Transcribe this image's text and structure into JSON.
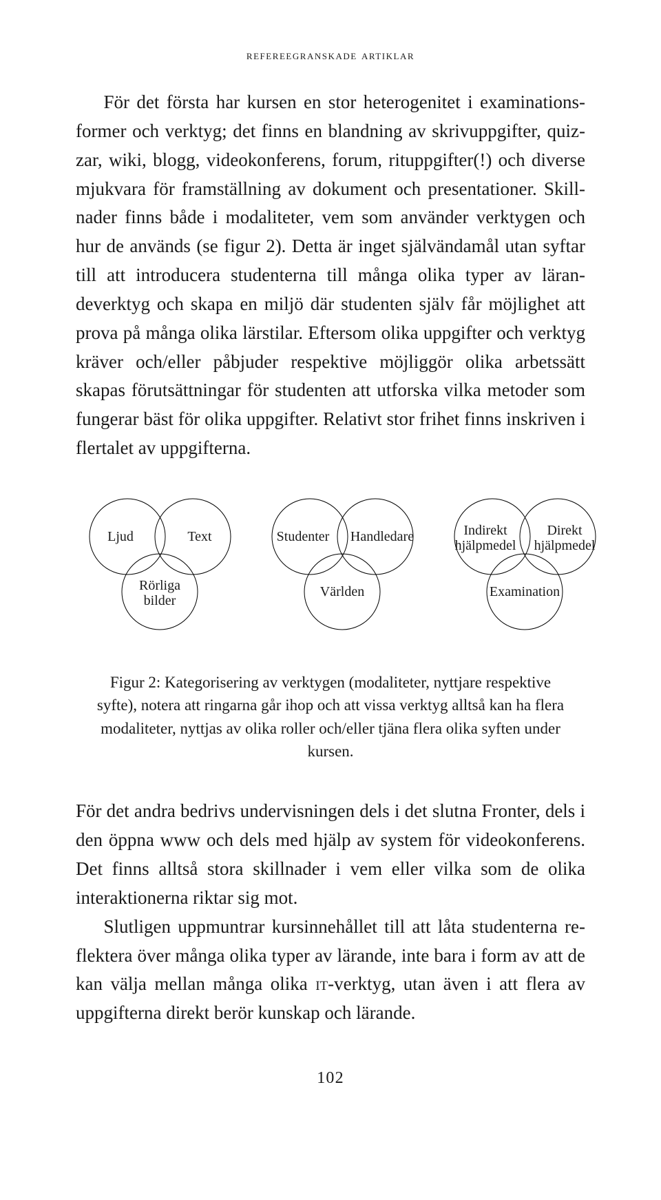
{
  "running_head": "refereegranskade artiklar",
  "paragraphs": {
    "p1": "För det första har kursen en stor heterogenitet i examinations­former och verktyg; det finns en blandning av skrivuppgifter, quiz­zar, wiki, blogg, videokonferens, forum, rituppgifter(!) och diverse mjukvara för framställning av dokument och presentationer. Skill­nader finns både i modaliteter, vem som använder verktygen och hur de används (se figur 2). Detta är inget självändamål utan syf­tar till att introducera studenterna till många olika typer av läran­deverktyg och skapa en miljö där studenten själv får möjlighet att prova på många olika lärstilar. Eftersom olika uppgifter och verk­tyg kräver och/eller påbjuder respektive möjliggör olika arbetssätt skapas förutsättningar för studenten att utforska vilka metoder som fungerar bäst för olika uppgifter. Relativt stor frihet finns in­skriven i flertalet av uppgifterna.",
    "p2": "För det andra bedrivs undervisningen dels i det slutna Fronter, dels i den öppna www och dels med hjälp av system för videokonfe­rens. Det finns alltså stora skillnader i vem eller vilka som de olika interaktionerna riktar sig mot.",
    "p3_a": "Slutligen uppmuntrar kursinnehållet till att låta studenterna re­flektera över många olika typer av lärande, inte bara i form av att de kan välja mellan många olika ",
    "p3_it": "it",
    "p3_b": "-verktyg, utan även i att flera av uppgifterna direkt berör kunskap och lärande."
  },
  "figure": {
    "stroke_color": "#000000",
    "stroke_width": 1,
    "groups": [
      {
        "top_left": "Ljud",
        "top_right": "Text",
        "bottom": "Rörliga bilder"
      },
      {
        "top_left": "Studenter",
        "top_right": "Handledare",
        "bottom": "Världen"
      },
      {
        "top_left": "Indirekt hjälpmedel",
        "top_right": "Direkt hjälpmedel",
        "bottom": "Examination"
      }
    ],
    "caption": "Figur 2: Kategorisering av verktygen (modaliteter, nyttjare respektive syfte), notera att ringarna går ihop och att vissa verktyg alltså kan ha flera modaliteter, nyttjas av olika roller och/eller tjäna flera olika syften under kursen."
  },
  "page_number": "102"
}
